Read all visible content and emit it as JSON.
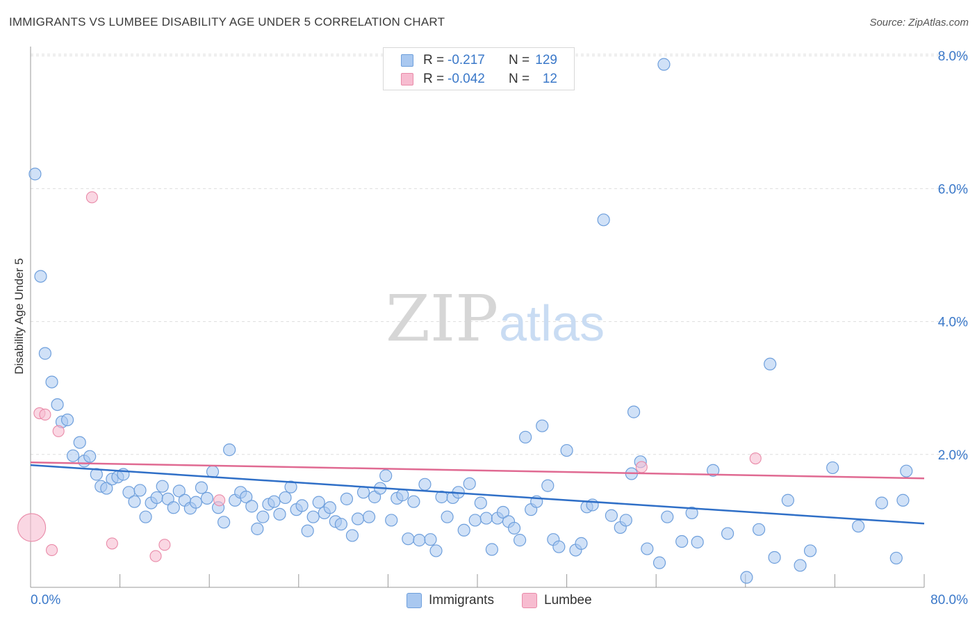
{
  "title": "IMMIGRANTS VS LUMBEE DISABILITY AGE UNDER 5 CORRELATION CHART",
  "source": "Source: ZipAtlas.com",
  "watermark": {
    "zip": "ZIP",
    "atlas": "atlas"
  },
  "legend": {
    "rows": [
      {
        "r_label": "R =",
        "r_value": "-0.217",
        "n_label": "N =",
        "n_value": "129"
      },
      {
        "r_label": "R =",
        "r_value": "-0.042",
        "n_label": "N =",
        "n_value": "12"
      }
    ]
  },
  "bottom_legend": {
    "immigrants": "Immigrants",
    "lumbee": "Lumbee"
  },
  "colors": {
    "immigrants_fill": "#a9c8f0",
    "immigrants_stroke": "#6e9fdc",
    "immigrants_line": "#2f6fc7",
    "lumbee_fill": "#f7bcd0",
    "lumbee_stroke": "#e98aa8",
    "lumbee_line": "#e06a92",
    "tick_label": "#3a78c9",
    "grid": "#dddddd"
  },
  "chart_data": {
    "type": "scatter",
    "title": "IMMIGRANTS VS LUMBEE DISABILITY AGE UNDER 5 CORRELATION CHART",
    "xlabel": "",
    "ylabel": "Disability Age Under 5",
    "xlim": [
      0,
      80
    ],
    "ylim": [
      0,
      8.3
    ],
    "x_tick_labels": [
      "0.0%",
      "80.0%"
    ],
    "y_ticks": [
      2,
      4,
      6,
      8
    ],
    "y_tick_labels": [
      "2.0%",
      "4.0%",
      "6.0%",
      "8.0%"
    ],
    "grid": true,
    "legend_position": "top-center",
    "series": [
      {
        "name": "Immigrants",
        "trendline": {
          "x": [
            0,
            80
          ],
          "y": [
            1.84,
            0.96
          ]
        },
        "points": [
          [
            0.4,
            6.22
          ],
          [
            0.9,
            4.68
          ],
          [
            1.3,
            3.52
          ],
          [
            1.9,
            3.09
          ],
          [
            2.4,
            2.75
          ],
          [
            2.8,
            2.49
          ],
          [
            3.3,
            2.52
          ],
          [
            4.4,
            2.18
          ],
          [
            3.8,
            1.98
          ],
          [
            4.8,
            1.9
          ],
          [
            5.3,
            1.97
          ],
          [
            5.9,
            1.7
          ],
          [
            6.3,
            1.52
          ],
          [
            6.8,
            1.49
          ],
          [
            7.3,
            1.63
          ],
          [
            7.8,
            1.66
          ],
          [
            8.3,
            1.7
          ],
          [
            8.8,
            1.43
          ],
          [
            9.3,
            1.29
          ],
          [
            9.8,
            1.46
          ],
          [
            10.3,
            1.06
          ],
          [
            10.8,
            1.27
          ],
          [
            11.3,
            1.35
          ],
          [
            11.8,
            1.52
          ],
          [
            12.3,
            1.33
          ],
          [
            12.8,
            1.2
          ],
          [
            13.3,
            1.45
          ],
          [
            13.8,
            1.31
          ],
          [
            14.3,
            1.19
          ],
          [
            14.8,
            1.28
          ],
          [
            15.3,
            1.5
          ],
          [
            15.8,
            1.34
          ],
          [
            16.3,
            1.74
          ],
          [
            16.8,
            1.2
          ],
          [
            17.3,
            0.98
          ],
          [
            17.8,
            2.07
          ],
          [
            18.3,
            1.31
          ],
          [
            18.8,
            1.43
          ],
          [
            19.3,
            1.36
          ],
          [
            19.8,
            1.22
          ],
          [
            20.3,
            0.88
          ],
          [
            20.8,
            1.06
          ],
          [
            21.3,
            1.25
          ],
          [
            21.8,
            1.29
          ],
          [
            22.3,
            1.1
          ],
          [
            22.8,
            1.35
          ],
          [
            23.3,
            1.51
          ],
          [
            23.8,
            1.17
          ],
          [
            24.3,
            1.23
          ],
          [
            24.8,
            0.85
          ],
          [
            25.3,
            1.06
          ],
          [
            25.8,
            1.28
          ],
          [
            26.3,
            1.12
          ],
          [
            26.8,
            1.2
          ],
          [
            27.3,
            0.99
          ],
          [
            27.8,
            0.95
          ],
          [
            28.3,
            1.33
          ],
          [
            28.8,
            0.78
          ],
          [
            29.3,
            1.03
          ],
          [
            29.8,
            1.43
          ],
          [
            30.3,
            1.06
          ],
          [
            30.8,
            1.36
          ],
          [
            31.3,
            1.49
          ],
          [
            31.8,
            1.68
          ],
          [
            32.3,
            1.01
          ],
          [
            32.8,
            1.34
          ],
          [
            33.3,
            1.39
          ],
          [
            33.8,
            0.73
          ],
          [
            34.3,
            1.29
          ],
          [
            34.8,
            0.71
          ],
          [
            35.3,
            1.55
          ],
          [
            35.8,
            0.72
          ],
          [
            36.3,
            0.55
          ],
          [
            36.8,
            1.36
          ],
          [
            37.3,
            1.06
          ],
          [
            37.8,
            1.35
          ],
          [
            38.3,
            1.43
          ],
          [
            38.8,
            0.86
          ],
          [
            39.3,
            1.56
          ],
          [
            39.8,
            1.01
          ],
          [
            40.3,
            1.27
          ],
          [
            40.8,
            1.04
          ],
          [
            41.3,
            0.57
          ],
          [
            41.8,
            1.04
          ],
          [
            42.3,
            1.13
          ],
          [
            42.8,
            0.99
          ],
          [
            43.3,
            0.89
          ],
          [
            43.8,
            0.71
          ],
          [
            44.3,
            2.26
          ],
          [
            44.8,
            1.17
          ],
          [
            45.3,
            1.29
          ],
          [
            45.8,
            2.43
          ],
          [
            46.3,
            1.53
          ],
          [
            46.8,
            0.72
          ],
          [
            47.3,
            0.61
          ],
          [
            48.0,
            2.06
          ],
          [
            48.8,
            0.56
          ],
          [
            49.3,
            0.66
          ],
          [
            49.8,
            1.21
          ],
          [
            50.3,
            1.24
          ],
          [
            51.3,
            5.53
          ],
          [
            52.0,
            1.08
          ],
          [
            52.8,
            0.9
          ],
          [
            53.3,
            1.01
          ],
          [
            54.0,
            2.64
          ],
          [
            53.8,
            1.71
          ],
          [
            54.6,
            1.89
          ],
          [
            55.2,
            0.58
          ],
          [
            56.3,
            0.37
          ],
          [
            57.0,
            1.06
          ],
          [
            56.7,
            7.87
          ],
          [
            58.3,
            0.69
          ],
          [
            59.2,
            1.12
          ],
          [
            59.7,
            0.68
          ],
          [
            61.1,
            1.76
          ],
          [
            62.4,
            0.81
          ],
          [
            64.1,
            0.15
          ],
          [
            65.2,
            0.87
          ],
          [
            66.2,
            3.36
          ],
          [
            66.6,
            0.45
          ],
          [
            67.8,
            1.31
          ],
          [
            68.9,
            0.33
          ],
          [
            69.8,
            0.55
          ],
          [
            71.8,
            1.8
          ],
          [
            74.1,
            0.92
          ],
          [
            76.2,
            1.27
          ],
          [
            77.5,
            0.44
          ],
          [
            78.1,
            1.31
          ],
          [
            78.4,
            1.75
          ]
        ]
      },
      {
        "name": "Lumbee",
        "trendline": {
          "x": [
            0,
            80
          ],
          "y": [
            1.88,
            1.64
          ]
        },
        "points": [
          [
            0.1,
            0.9
          ],
          [
            0.8,
            2.62
          ],
          [
            1.3,
            2.6
          ],
          [
            1.9,
            0.56
          ],
          [
            2.5,
            2.35
          ],
          [
            5.5,
            5.87
          ],
          [
            7.3,
            0.66
          ],
          [
            11.2,
            0.47
          ],
          [
            12.0,
            0.64
          ],
          [
            16.9,
            1.31
          ],
          [
            54.7,
            1.81
          ],
          [
            64.9,
            1.94
          ]
        ]
      }
    ]
  }
}
